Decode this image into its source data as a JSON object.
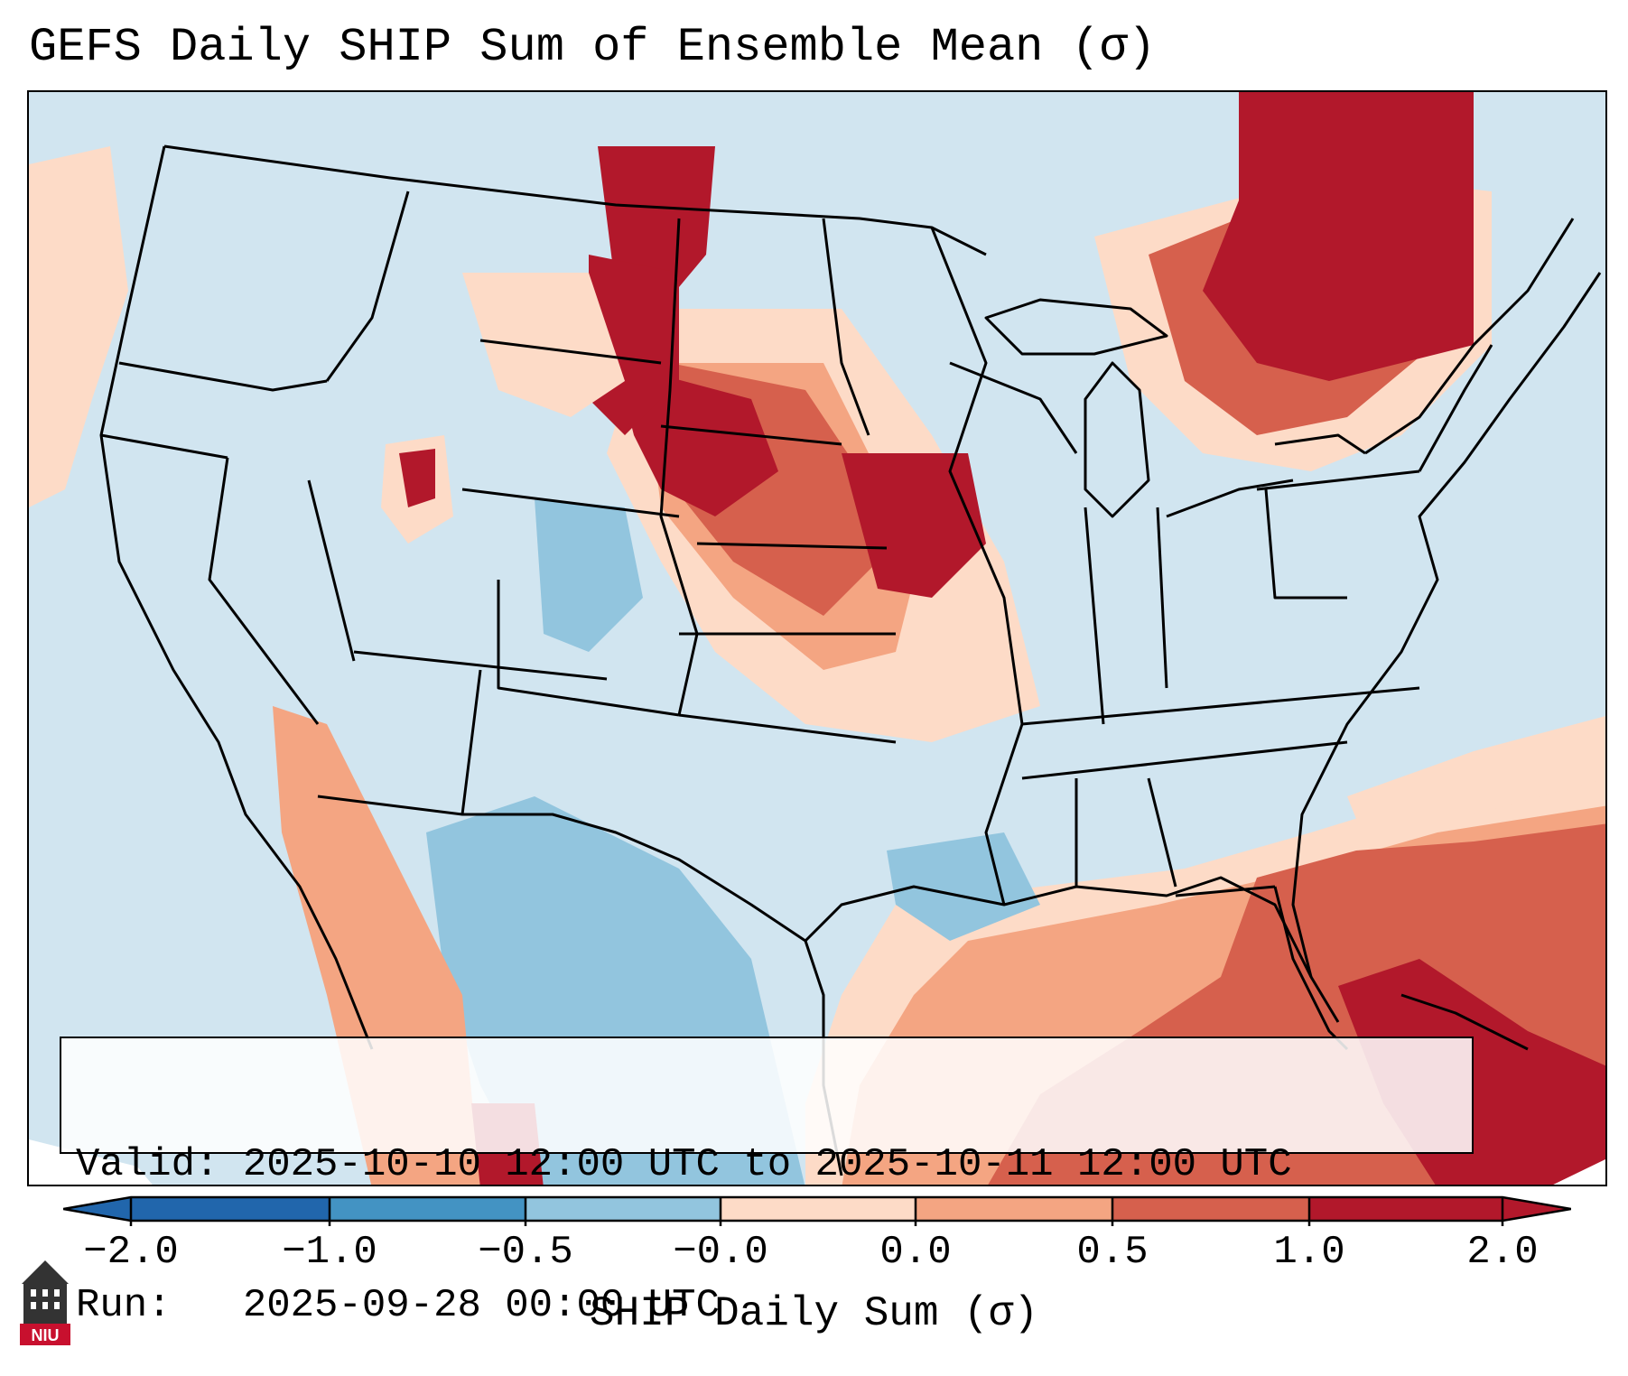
{
  "title": "GEFS Daily SHIP Sum of Ensemble Mean (σ)",
  "info": {
    "valid_line": "Valid: 2025-10-10 12:00 UTC to 2025-10-11 12:00 UTC",
    "run_line": "Run:   2025-09-28 00:00 UTC"
  },
  "colorbar": {
    "label": "SHIP Daily Sum (σ)",
    "ticks": [
      "−2.0",
      "−1.0",
      "−0.5",
      "−0.0",
      "0.0",
      "0.5",
      "1.0",
      "2.0"
    ],
    "colors": [
      "#2166ac",
      "#4393c3",
      "#92c5de",
      "#d1e5f0",
      "#fddbc7",
      "#f4a582",
      "#d6604d",
      "#b2182b"
    ]
  },
  "logo": {
    "text": "NIU",
    "icon": "niu-tower-icon"
  },
  "map_features": [
    "us-state-borders",
    "coastlines",
    "great-lakes",
    "shaded-anomaly-field"
  ]
}
